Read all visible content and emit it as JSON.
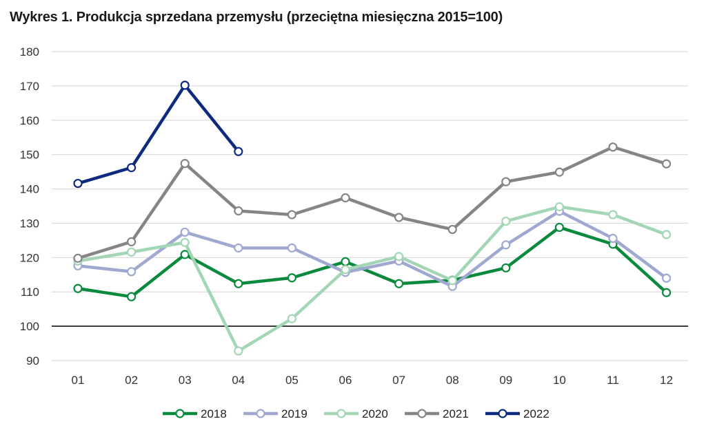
{
  "title": "Wykres 1. Produkcja sprzedana przemysłu (przeciętna miesięczna 2015=100)",
  "chart_data": {
    "type": "line",
    "title": "Wykres 1. Produkcja sprzedana przemysłu (przeciętna miesięczna 2015=100)",
    "categories": [
      "01",
      "02",
      "03",
      "04",
      "05",
      "06",
      "07",
      "08",
      "09",
      "10",
      "11",
      "12"
    ],
    "ylim": [
      90,
      180
    ],
    "yticks": [
      90,
      100,
      110,
      120,
      130,
      140,
      150,
      160,
      170,
      180
    ],
    "ytick_labels": [
      "90",
      "100",
      "110",
      "120",
      "130",
      "140",
      "150",
      "160",
      "170",
      "180"
    ],
    "reference_line": 100,
    "grid": true,
    "legend_position": "bottom",
    "series": [
      {
        "name": "2018",
        "color": "#0b8a3e",
        "values": [
          111.0,
          108.6,
          120.9,
          112.4,
          114.1,
          118.8,
          112.4,
          113.4,
          117.0,
          128.8,
          123.9,
          109.8
        ]
      },
      {
        "name": "2019",
        "color": "#9ea8d1",
        "values": [
          117.6,
          115.9,
          127.4,
          122.8,
          122.8,
          115.7,
          119.0,
          111.6,
          123.7,
          133.5,
          125.6,
          114.0
        ]
      },
      {
        "name": "2020",
        "color": "#a3d6b4",
        "values": [
          119.0,
          121.6,
          124.4,
          92.8,
          102.2,
          116.5,
          120.3,
          113.3,
          130.6,
          134.8,
          132.5,
          126.7
        ]
      },
      {
        "name": "2021",
        "color": "#858585",
        "values": [
          119.8,
          124.6,
          147.4,
          133.6,
          132.5,
          137.4,
          131.7,
          128.2,
          142.1,
          144.9,
          152.2,
          147.3
        ]
      },
      {
        "name": "2022",
        "color": "#0d2a7e",
        "values": [
          141.6,
          146.2,
          170.2,
          150.9,
          null,
          null,
          null,
          null,
          null,
          null,
          null,
          null
        ]
      }
    ]
  }
}
